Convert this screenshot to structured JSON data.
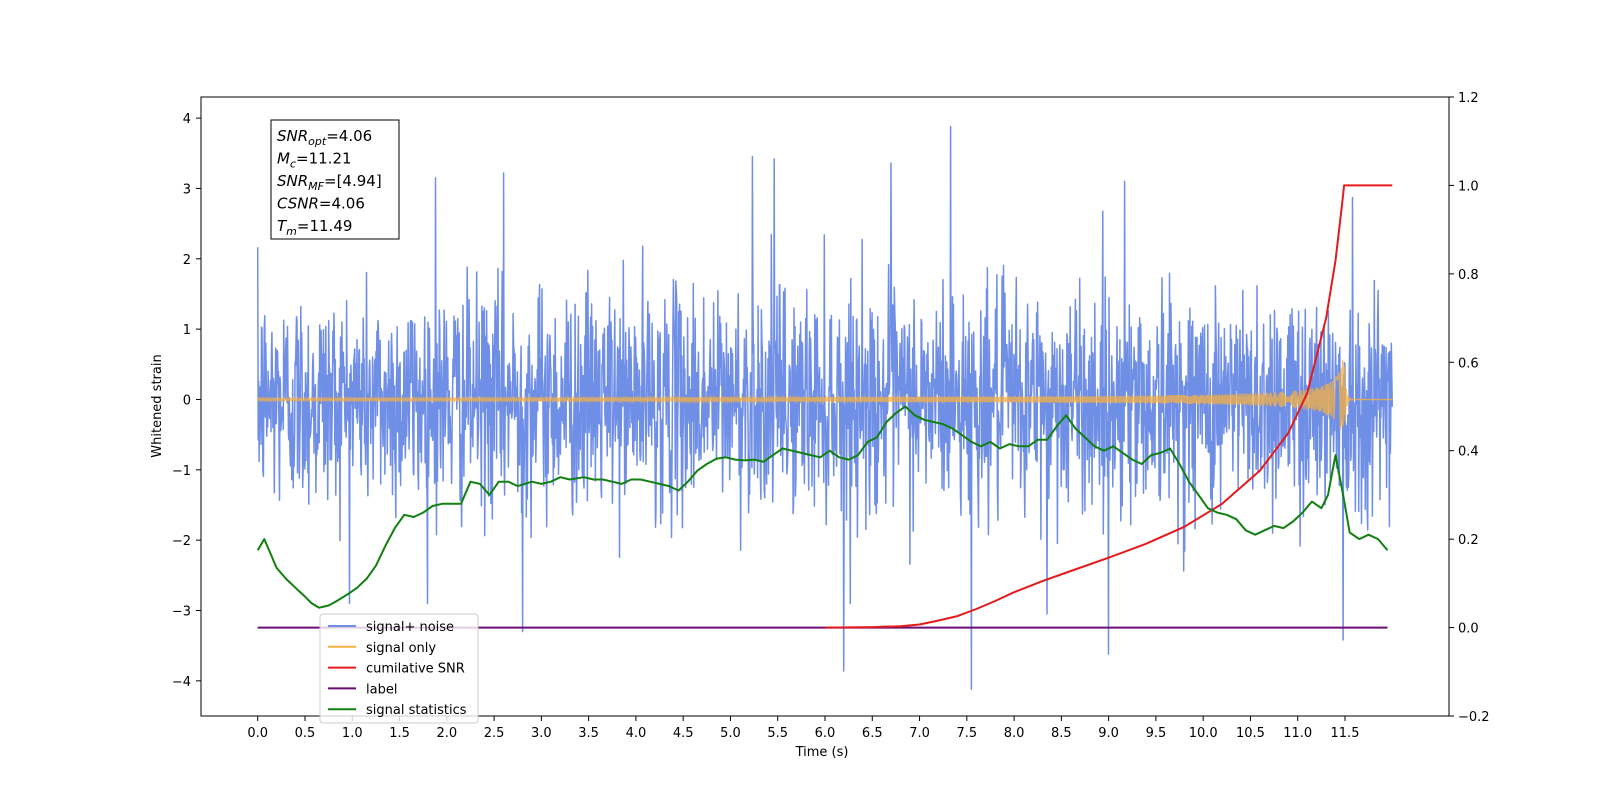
{
  "chart_data": {
    "type": "line",
    "xlabel": "Time (s)",
    "ylabel": "Whitened strain",
    "xlim": [
      -0.6,
      12.6
    ],
    "ylim": [
      -4.5,
      4.3
    ],
    "y2lim": [
      -0.2,
      1.2
    ],
    "x_ticks": [
      0.0,
      0.5,
      1.0,
      1.5,
      2.0,
      2.5,
      3.0,
      3.5,
      4.0,
      4.5,
      5.0,
      5.5,
      6.0,
      6.5,
      7.0,
      7.5,
      8.0,
      8.5,
      9.0,
      9.5,
      10.0,
      10.5,
      11.0,
      11.5
    ],
    "x_tick_labels": [
      "0.0",
      "0.5",
      "1.0",
      "1.5",
      "2.0",
      "2.5",
      "3.0",
      "3.5",
      "4.0",
      "4.5",
      "5.0",
      "5.5",
      "6.0",
      "6.5",
      "7.0",
      "7.5",
      "8.0",
      "8.5",
      "9.0",
      "9.5",
      "10.0",
      "10.5",
      "11.0",
      "11.5"
    ],
    "y_ticks": [
      -4,
      -3,
      -2,
      -1,
      0,
      1,
      2,
      3,
      4
    ],
    "y_tick_labels": [
      "−4",
      "−3",
      "−2",
      "−1",
      "0",
      "1",
      "2",
      "3",
      "4"
    ],
    "y2_ticks": [
      -0.2,
      0.0,
      0.2,
      0.4,
      0.6,
      0.8,
      1.0,
      1.2
    ],
    "y2_tick_labels": [
      "−0.2",
      "0.0",
      "0.2",
      "0.4",
      "0.6",
      "0.8",
      "1.0",
      "1.2"
    ],
    "series": [
      {
        "name": "signal+ noise",
        "axis": "left",
        "color": "#6f8ee6",
        "x_range": [
          0.0,
          12.0
        ],
        "typical_range": [
          -1.7,
          1.7
        ],
        "peaks": [
          [
            7.33,
            3.88
          ],
          [
            5.23,
            3.45
          ],
          [
            5.46,
            3.42
          ],
          [
            6.7,
            3.36
          ],
          [
            1.88,
            3.15
          ],
          [
            2.6,
            3.22
          ],
          [
            9.17,
            3.1
          ],
          [
            11.58,
            2.87
          ],
          [
            7.55,
            -4.12
          ],
          [
            6.2,
            -3.86
          ],
          [
            9.0,
            -3.62
          ],
          [
            11.48,
            -3.42
          ],
          [
            2.8,
            -3.3
          ],
          [
            8.35,
            -3.05
          ]
        ]
      },
      {
        "name": "signal only",
        "axis": "left",
        "color": "#f5b041",
        "x_range": [
          0.0,
          12.0
        ],
        "chirp_peak_time": 11.49,
        "chirp_peak_amplitude": 0.72
      },
      {
        "name": "cumilative SNR",
        "axis": "right",
        "color": "#e41a1c",
        "x": [
          6.0,
          6.5,
          6.8,
          7.0,
          7.2,
          7.4,
          7.6,
          7.8,
          8.0,
          8.3,
          8.6,
          9.0,
          9.4,
          9.8,
          10.2,
          10.6,
          10.9,
          11.1,
          11.3,
          11.4,
          11.47,
          11.49,
          12.0
        ],
        "y": [
          0.0,
          0.001,
          0.003,
          0.007,
          0.016,
          0.026,
          0.042,
          0.06,
          0.08,
          0.105,
          0.128,
          0.158,
          0.19,
          0.228,
          0.28,
          0.355,
          0.44,
          0.53,
          0.7,
          0.83,
          0.96,
          1.0,
          1.0
        ]
      },
      {
        "name": "label",
        "axis": "right",
        "color": "#6a0d74",
        "x": [
          0.0,
          11.95
        ],
        "y": [
          0.0,
          0.0
        ]
      },
      {
        "name": "signal statistics",
        "axis": "right",
        "color": "#118011",
        "x": [
          0.0,
          0.07,
          0.13,
          0.2,
          0.3,
          0.4,
          0.5,
          0.57,
          0.65,
          0.75,
          0.85,
          0.95,
          1.05,
          1.15,
          1.25,
          1.35,
          1.45,
          1.55,
          1.65,
          1.75,
          1.85,
          1.95,
          2.05,
          2.15,
          2.25,
          2.35,
          2.45,
          2.55,
          2.65,
          2.75,
          2.9,
          3.0,
          3.1,
          3.2,
          3.3,
          3.45,
          3.55,
          3.65,
          3.75,
          3.85,
          3.95,
          4.05,
          4.15,
          4.25,
          4.35,
          4.45,
          4.55,
          4.65,
          4.75,
          4.85,
          4.95,
          5.05,
          5.15,
          5.25,
          5.35,
          5.45,
          5.55,
          5.65,
          5.75,
          5.85,
          5.95,
          6.05,
          6.15,
          6.25,
          6.35,
          6.45,
          6.55,
          6.65,
          6.75,
          6.85,
          6.95,
          7.05,
          7.15,
          7.25,
          7.35,
          7.45,
          7.55,
          7.65,
          7.75,
          7.85,
          7.95,
          8.05,
          8.15,
          8.25,
          8.35,
          8.45,
          8.55,
          8.65,
          8.75,
          8.85,
          8.95,
          9.05,
          9.15,
          9.25,
          9.35,
          9.45,
          9.55,
          9.65,
          9.75,
          9.85,
          9.95,
          10.05,
          10.15,
          10.25,
          10.35,
          10.45,
          10.55,
          10.65,
          10.75,
          10.85,
          10.95,
          11.05,
          11.15,
          11.25,
          11.32,
          11.4,
          11.48,
          11.55,
          11.65,
          11.75,
          11.85,
          11.95
        ],
        "y": [
          0.175,
          0.2,
          0.17,
          0.135,
          0.11,
          0.09,
          0.07,
          0.055,
          0.045,
          0.05,
          0.062,
          0.075,
          0.09,
          0.11,
          0.14,
          0.185,
          0.225,
          0.255,
          0.25,
          0.26,
          0.275,
          0.28,
          0.28,
          0.28,
          0.33,
          0.325,
          0.3,
          0.33,
          0.33,
          0.32,
          0.33,
          0.325,
          0.33,
          0.34,
          0.335,
          0.34,
          0.335,
          0.335,
          0.33,
          0.325,
          0.335,
          0.335,
          0.33,
          0.325,
          0.32,
          0.31,
          0.33,
          0.355,
          0.37,
          0.382,
          0.385,
          0.38,
          0.378,
          0.38,
          0.375,
          0.39,
          0.405,
          0.4,
          0.395,
          0.39,
          0.385,
          0.4,
          0.385,
          0.38,
          0.39,
          0.42,
          0.43,
          0.465,
          0.485,
          0.5,
          0.48,
          0.47,
          0.465,
          0.46,
          0.45,
          0.435,
          0.42,
          0.41,
          0.42,
          0.405,
          0.415,
          0.41,
          0.41,
          0.425,
          0.425,
          0.455,
          0.48,
          0.45,
          0.43,
          0.41,
          0.4,
          0.41,
          0.395,
          0.38,
          0.37,
          0.39,
          0.395,
          0.405,
          0.37,
          0.33,
          0.3,
          0.27,
          0.26,
          0.255,
          0.245,
          0.22,
          0.21,
          0.22,
          0.23,
          0.225,
          0.24,
          0.26,
          0.285,
          0.27,
          0.3,
          0.39,
          0.3,
          0.215,
          0.2,
          0.21,
          0.2,
          0.175
        ]
      }
    ],
    "legend": {
      "placement": "lower-left",
      "entries": [
        {
          "label": "signal+ noise",
          "color": "#6f8ee6"
        },
        {
          "label": "signal only",
          "color": "#f5b041"
        },
        {
          "label": "cumilative SNR",
          "color": "#e41a1c"
        },
        {
          "label": "label",
          "color": "#6a0d74"
        },
        {
          "label": "signal statistics",
          "color": "#118011"
        }
      ]
    },
    "annotations": [
      {
        "name": "SNR",
        "sub": "opt",
        "value": "=4.06"
      },
      {
        "name": "M",
        "sub": "c",
        "value": "=11.21"
      },
      {
        "name": "SNR",
        "sub": "MF",
        "value": "=[4.94]"
      },
      {
        "name": "CSNR",
        "sub": "",
        "value": "=4.06"
      },
      {
        "name": "T",
        "sub": "m",
        "value": "=11.49"
      }
    ]
  }
}
